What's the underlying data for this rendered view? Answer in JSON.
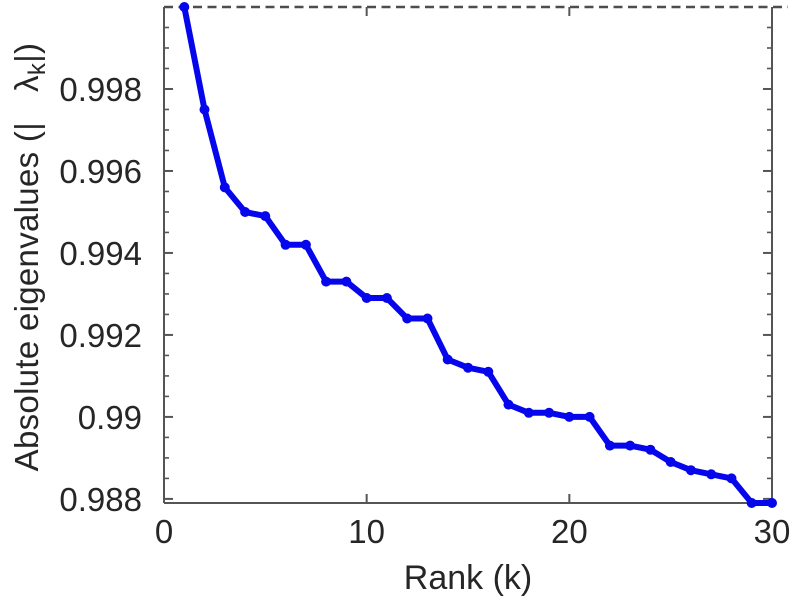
{
  "chart_data": {
    "type": "line",
    "title": "",
    "xlabel": "Rank (k)",
    "ylabel": "Absolute eigenvalues (|λ_k|)",
    "ylabel_parts": {
      "prefix": "Absolute eigenvalues (|",
      "symbol": "λ",
      "subscript": "k",
      "suffix": "|)"
    },
    "x": [
      1,
      2,
      3,
      4,
      5,
      6,
      7,
      8,
      9,
      10,
      11,
      12,
      13,
      14,
      15,
      16,
      17,
      18,
      19,
      20,
      21,
      22,
      23,
      24,
      25,
      26,
      27,
      28,
      29,
      30
    ],
    "values": [
      1.0,
      0.9975,
      0.9956,
      0.995,
      0.9949,
      0.9942,
      0.9942,
      0.9933,
      0.9933,
      0.9929,
      0.9929,
      0.9924,
      0.9924,
      0.9914,
      0.9912,
      0.9911,
      0.9903,
      0.9901,
      0.9901,
      0.99,
      0.99,
      0.9893,
      0.9893,
      0.9892,
      0.9889,
      0.9887,
      0.9886,
      0.9885,
      0.9879,
      0.9879
    ],
    "xlim": [
      0,
      30
    ],
    "ylim": [
      0.9879,
      1.0
    ],
    "x_ticks": [
      0,
      10,
      20,
      30
    ],
    "x_tick_labels": [
      "0",
      "10",
      "20",
      "30"
    ],
    "y_ticks": [
      0.988,
      0.99,
      0.992,
      0.994,
      0.996,
      0.998
    ],
    "y_tick_labels": [
      "0.988",
      "0.99",
      "0.992",
      "0.994",
      "0.996",
      "0.998"
    ],
    "y_minor_tick_step": 0.0005,
    "reference_line_y": 1.0,
    "reference_line_style": "dashed",
    "grid": false,
    "legend": null,
    "marker": "circle",
    "colors": {
      "line": "#0606ec",
      "reference": "#4d4d4d",
      "axis": "#555555",
      "text": "#262626",
      "background": "#ffffff"
    }
  }
}
